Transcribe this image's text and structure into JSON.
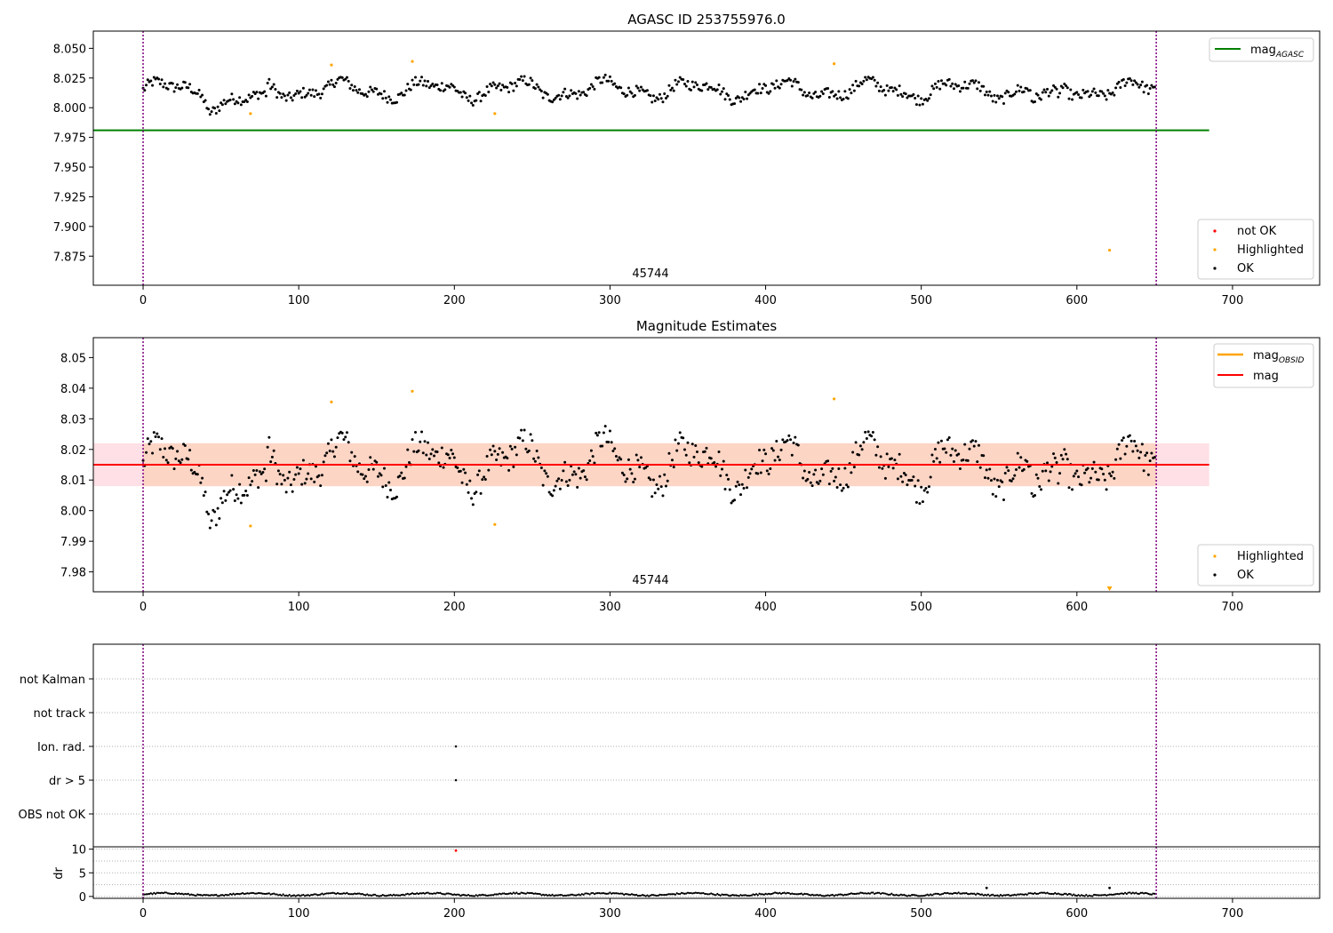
{
  "colors": {
    "ok": "#000000",
    "highlighted": "#ffa500",
    "not_ok": "#ff0000",
    "mag_agasc": "#008000",
    "mag_obsid": "#ffa500",
    "mag": "#ff0000",
    "obsid_boundary": "#800080",
    "band_outer": "#ffe0e6",
    "band_inner": "#fcd5c5"
  },
  "chart_data": [
    {
      "type": "scatter",
      "title": "AGASC ID 253755976.0",
      "xlim": [
        -32,
        756
      ],
      "ylim": [
        7.8505,
        8.0645
      ],
      "yticks": [
        "8.050",
        "8.025",
        "8.000",
        "7.975",
        "7.950",
        "7.925",
        "7.900",
        "7.875"
      ],
      "xticks": [
        "0",
        "100",
        "200",
        "300",
        "400",
        "500",
        "600",
        "700"
      ],
      "obsid_label": "45744",
      "obsid_boundaries": [
        0,
        651
      ],
      "mag_agasc": 7.981,
      "mag_line_x": [
        -32,
        685
      ],
      "series": [
        {
          "name": "not OK",
          "points": []
        },
        {
          "name": "Highlighted",
          "points": [
            [
              69,
              7.995
            ],
            [
              121,
              8.036
            ],
            [
              173,
              8.039
            ],
            [
              226,
              7.995
            ],
            [
              444,
              8.037
            ],
            [
              621,
              7.88
            ]
          ]
        },
        {
          "name": "OK",
          "n": 651,
          "base": 8.015,
          "spread": 0.01
        }
      ],
      "legend_upper": [
        {
          "label": "mag",
          "sub": "AGASC"
        }
      ],
      "legend_lower": [
        "not OK",
        "Highlighted",
        "OK"
      ]
    },
    {
      "type": "scatter",
      "title": "Magnitude Estimates",
      "xlim": [
        -32,
        756
      ],
      "ylim": [
        7.9735,
        8.0565
      ],
      "yticks": [
        "8.05",
        "8.04",
        "8.03",
        "8.02",
        "8.01",
        "8.00",
        "7.99",
        "7.98"
      ],
      "xticks": [
        "0",
        "100",
        "200",
        "300",
        "400",
        "500",
        "600",
        "700"
      ],
      "obsid_label": "45744",
      "obsid_boundaries": [
        0,
        651
      ],
      "mag": 8.015,
      "mag_obsid": 8.015,
      "band": [
        8.008,
        8.022
      ],
      "series": [
        {
          "name": "Highlighted",
          "points": [
            [
              69,
              7.995
            ],
            [
              121,
              8.0355
            ],
            [
              173,
              8.039
            ],
            [
              226,
              7.9955
            ],
            [
              444,
              8.0365
            ],
            [
              621,
              7.974
            ]
          ]
        },
        {
          "name": "OK",
          "n": 651,
          "base": 8.015,
          "spread": 0.01
        }
      ],
      "legend_upper": [
        {
          "label": "mag",
          "sub": "OBSID"
        },
        {
          "label": "mag",
          "sub": ""
        }
      ],
      "legend_lower": [
        "Highlighted",
        "OK"
      ]
    },
    {
      "type": "scatter",
      "title": "",
      "xlim": [
        -32,
        756
      ],
      "categories": [
        "not Kalman",
        "not track",
        "Ion. rad.",
        "dr > 5",
        "OBS not OK"
      ],
      "flag_points": [
        {
          "category": "Ion. rad.",
          "x": 201
        },
        {
          "category": "dr > 5",
          "x": 201
        }
      ],
      "obsid_boundaries": [
        0,
        651
      ]
    },
    {
      "type": "scatter",
      "title": "",
      "ylabel": "dr",
      "xlim": [
        -32,
        756
      ],
      "ylim": [
        -0.4,
        10.5
      ],
      "yticks": [
        "10",
        "5",
        "0"
      ],
      "xticks": [
        "0",
        "100",
        "200",
        "300",
        "400",
        "500",
        "600",
        "700"
      ],
      "obsid_boundaries": [
        0,
        651
      ],
      "outliers": [
        {
          "x": 201,
          "y": 9.7,
          "kind": "not OK"
        },
        {
          "x": 542,
          "y": 1.8,
          "kind": "OK"
        },
        {
          "x": 621,
          "y": 1.8,
          "kind": "OK"
        }
      ],
      "n": 651
    }
  ]
}
